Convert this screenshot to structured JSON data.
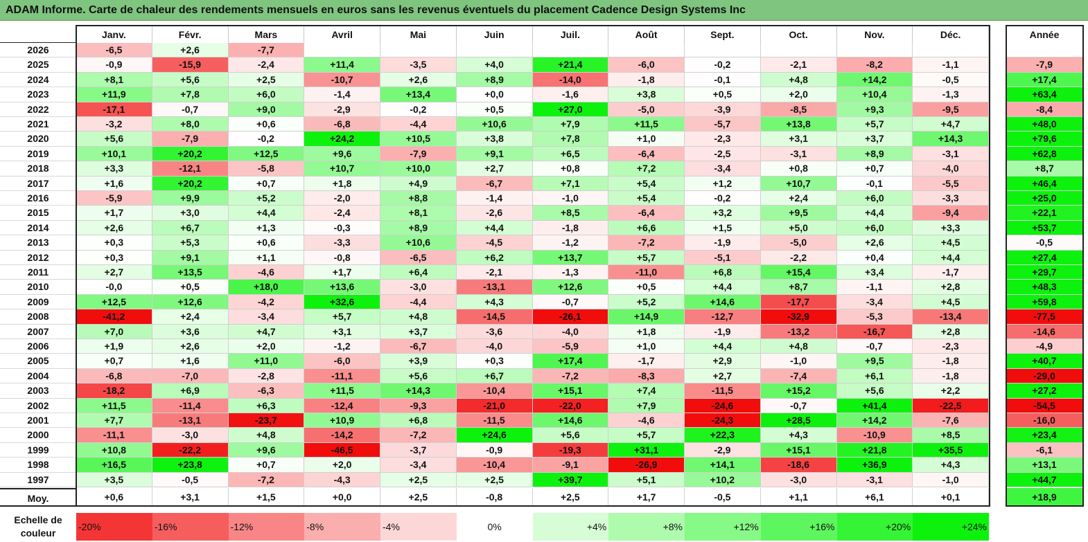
{
  "title": "ADAM Informe. Carte de chaleur des rendements mensuels en euros sans les revenus éventuels du placement Cadence Design Systems Inc",
  "chart_data": {
    "type": "heatmap",
    "columns": [
      "Janv.",
      "Févr.",
      "Mars",
      "Avril",
      "Mai",
      "Juin",
      "Juil.",
      "Août",
      "Sept.",
      "Oct.",
      "Nov.",
      "Déc."
    ],
    "year_column": "Année",
    "avg_label": "Moy.",
    "rows": [
      {
        "year": "2026",
        "values": [
          "-6,5",
          "+2,6",
          "-7,7",
          "",
          "",
          "",
          "",
          "",
          "",
          "",
          "",
          ""
        ],
        "annual": ""
      },
      {
        "year": "2025",
        "values": [
          "-0,9",
          "-15,9",
          "-2,4",
          "+11,4",
          "-3,5",
          "+4,0",
          "+21,4",
          "-6,0",
          "-0,2",
          "-2,1",
          "-8,2",
          "-1,1"
        ],
        "annual": "-7,9"
      },
      {
        "year": "2024",
        "values": [
          "+8,1",
          "+5,6",
          "+2,5",
          "-10,7",
          "+2,6",
          "+8,9",
          "-14,0",
          "-1,8",
          "-0,1",
          "+4,8",
          "+14,2",
          "-0,5"
        ],
        "annual": "+17,4"
      },
      {
        "year": "2023",
        "values": [
          "+11,9",
          "+7,8",
          "+6,0",
          "-1,4",
          "+13,4",
          "+0,0",
          "-1,6",
          "+3,8",
          "+0,5",
          "+2,0",
          "+10,4",
          "-1,3"
        ],
        "annual": "+63,4"
      },
      {
        "year": "2022",
        "values": [
          "-17,1",
          "-0,7",
          "+9,0",
          "-2,9",
          "-0,2",
          "+0,5",
          "+27,0",
          "-5,0",
          "-3,9",
          "-8,5",
          "+9,3",
          "-9,5"
        ],
        "annual": "-8,4"
      },
      {
        "year": "2021",
        "values": [
          "-3,2",
          "+8,0",
          "+0,6",
          "-6,8",
          "-4,4",
          "+10,6",
          "+7,9",
          "+11,5",
          "-5,7",
          "+13,8",
          "+5,7",
          "+4,7"
        ],
        "annual": "+48,0"
      },
      {
        "year": "2020",
        "values": [
          "+5,6",
          "-7,9",
          "-0,2",
          "+24,2",
          "+10,5",
          "+3,8",
          "+7,8",
          "+1,0",
          "-2,3",
          "+3,1",
          "+3,7",
          "+14,3"
        ],
        "annual": "+79,6"
      },
      {
        "year": "2019",
        "values": [
          "+10,1",
          "+20,2",
          "+12,5",
          "+9,6",
          "-7,9",
          "+9,1",
          "+6,5",
          "-6,4",
          "-2,5",
          "-3,1",
          "+8,9",
          "-3,1"
        ],
        "annual": "+62,8"
      },
      {
        "year": "2018",
        "values": [
          "+3,3",
          "-12,1",
          "-5,8",
          "+10,7",
          "+10,0",
          "+2,7",
          "+0,8",
          "+7,2",
          "-3,4",
          "+0,8",
          "+0,7",
          "-4,0"
        ],
        "annual": "+8,7"
      },
      {
        "year": "2017",
        "values": [
          "+1,6",
          "+20,2",
          "+0,7",
          "+1,8",
          "+4,9",
          "-6,7",
          "+7,1",
          "+5,4",
          "+1,2",
          "+10,7",
          "-0,1",
          "-5,5"
        ],
        "annual": "+46,4"
      },
      {
        "year": "2016",
        "values": [
          "-5,9",
          "+9,9",
          "+5,2",
          "-2,0",
          "+8,8",
          "-1,4",
          "-1,0",
          "+5,4",
          "-0,2",
          "+2,4",
          "+6,0",
          "-3,3"
        ],
        "annual": "+25,0"
      },
      {
        "year": "2015",
        "values": [
          "+1,7",
          "+3,0",
          "+4,4",
          "-2,4",
          "+8,1",
          "-2,6",
          "+8,5",
          "-6,4",
          "+3,2",
          "+9,5",
          "+4,4",
          "-9,4"
        ],
        "annual": "+22,1"
      },
      {
        "year": "2014",
        "values": [
          "+2,6",
          "+6,7",
          "+1,3",
          "-0,3",
          "+8,9",
          "+4,4",
          "-1,8",
          "+6,6",
          "+1,5",
          "+5,0",
          "+6,0",
          "+3,3"
        ],
        "annual": "+53,7"
      },
      {
        "year": "2013",
        "values": [
          "+0,3",
          "+5,3",
          "+0,6",
          "-3,3",
          "+10,6",
          "-4,5",
          "-1,2",
          "-7,2",
          "-1,9",
          "-5,0",
          "+2,6",
          "+4,5"
        ],
        "annual": "-0,5"
      },
      {
        "year": "2012",
        "values": [
          "+0,3",
          "+9,1",
          "+1,1",
          "-0,8",
          "-6,5",
          "+6,2",
          "+13,7",
          "+5,7",
          "-5,1",
          "-2,2",
          "+0,4",
          "+4,4"
        ],
        "annual": "+27,4"
      },
      {
        "year": "2011",
        "values": [
          "+2,7",
          "+13,5",
          "-4,6",
          "+1,7",
          "+6,4",
          "-2,1",
          "-1,3",
          "-11,0",
          "+6,8",
          "+15,4",
          "+3,4",
          "-1,7"
        ],
        "annual": "+29,7"
      },
      {
        "year": "2010",
        "values": [
          "-0,0",
          "+0,5",
          "+18,0",
          "+13,6",
          "-3,0",
          "-13,1",
          "+12,6",
          "+0,5",
          "+4,4",
          "+8,7",
          "-1,1",
          "+2,8"
        ],
        "annual": "+48,3"
      },
      {
        "year": "2009",
        "values": [
          "+12,5",
          "+12,6",
          "-4,2",
          "+32,6",
          "-4,4",
          "+4,3",
          "-0,7",
          "+5,2",
          "+14,6",
          "-17,7",
          "-3,4",
          "+4,5"
        ],
        "annual": "+59,8"
      },
      {
        "year": "2008",
        "values": [
          "-41,2",
          "+2,4",
          "-3,4",
          "+5,7",
          "+4,8",
          "-14,5",
          "-26,1",
          "+14,9",
          "-12,7",
          "-32,9",
          "-5,3",
          "-13,4"
        ],
        "annual": "-77,5"
      },
      {
        "year": "2007",
        "values": [
          "+7,0",
          "+3,6",
          "+4,7",
          "+3,1",
          "+3,7",
          "-3,6",
          "-4,0",
          "+1,8",
          "-1,9",
          "-13,2",
          "-16,7",
          "+2,8"
        ],
        "annual": "-14,6"
      },
      {
        "year": "2006",
        "values": [
          "+1,9",
          "+2,6",
          "+2,0",
          "-1,2",
          "-6,7",
          "-4,0",
          "-5,9",
          "+1,0",
          "+4,4",
          "+4,8",
          "-0,7",
          "-2,3"
        ],
        "annual": "-4,9"
      },
      {
        "year": "2005",
        "values": [
          "+0,7",
          "+1,6",
          "+11,0",
          "-6,0",
          "+3,9",
          "+0,3",
          "+17,4",
          "-1,7",
          "+2,9",
          "-1,0",
          "+9,5",
          "-1,8"
        ],
        "annual": "+40,7"
      },
      {
        "year": "2004",
        "values": [
          "-6,8",
          "-7,0",
          "-2,8",
          "-11,1",
          "+5,6",
          "+6,7",
          "-7,2",
          "-8,3",
          "+2,7",
          "-7,4",
          "+6,1",
          "-1,8"
        ],
        "annual": "-29,0"
      },
      {
        "year": "2003",
        "values": [
          "-18,2",
          "+6,9",
          "-6,3",
          "+11,5",
          "+14,3",
          "-10,4",
          "+15,1",
          "+7,4",
          "-11,5",
          "+15,2",
          "+5,6",
          "+2,2"
        ],
        "annual": "+27,2"
      },
      {
        "year": "2002",
        "values": [
          "+11,5",
          "-11,4",
          "+6,3",
          "-12,4",
          "-9,3",
          "-21,0",
          "-22,0",
          "+7,9",
          "-24,6",
          "-0,7",
          "+41,4",
          "-22,5"
        ],
        "annual": "-54,5"
      },
      {
        "year": "2001",
        "values": [
          "+7,7",
          "-13,1",
          "-23,7",
          "+10,9",
          "+6,8",
          "-11,5",
          "+14,6",
          "-4,6",
          "-24,3",
          "+28,5",
          "+14,2",
          "-7,6"
        ],
        "annual": "-16,0"
      },
      {
        "year": "2000",
        "values": [
          "-11,1",
          "-3,0",
          "+4,8",
          "-14,2",
          "-7,2",
          "+24,6",
          "+5,6",
          "+5,7",
          "+22,3",
          "+4,3",
          "-10,9",
          "+8,5"
        ],
        "annual": "+23,4"
      },
      {
        "year": "1999",
        "values": [
          "+10,8",
          "-22,2",
          "+9,6",
          "-46,5",
          "-3,7",
          "-0,9",
          "-19,3",
          "+31,1",
          "-2,9",
          "+15,1",
          "+21,8",
          "+35,5"
        ],
        "annual": "-6,1"
      },
      {
        "year": "1998",
        "values": [
          "+16,5",
          "+23,8",
          "+0,7",
          "+2,0",
          "-3,4",
          "-10,4",
          "-9,1",
          "-26,9",
          "+14,1",
          "-18,6",
          "+36,9",
          "+4,3"
        ],
        "annual": "+13,1"
      },
      {
        "year": "1997",
        "values": [
          "+3,5",
          "-0,5",
          "-7,2",
          "-4,3",
          "+2,5",
          "+2,5",
          "+39,7",
          "+5,1",
          "+10,2",
          "-3,0",
          "-3,1",
          "-1,0"
        ],
        "annual": "+44,7"
      }
    ],
    "average": {
      "values": [
        "+0,6",
        "+3,1",
        "+1,5",
        "+0,0",
        "+2,5",
        "-0,8",
        "+2,5",
        "+1,7",
        "-0,5",
        "+1,1",
        "+6,1",
        "+0,1"
      ],
      "annual": "+18,9"
    },
    "legend": {
      "title": "Echelle de couleur",
      "items": [
        "-20%",
        "-16%",
        "-12%",
        "-8%",
        "-4%",
        "0%",
        "+4%",
        "+8%",
        "+12%",
        "+16%",
        "+20%",
        "+24%"
      ]
    },
    "colors": {
      "negative_max": "#f20d0d",
      "positive_max": "#0df20d",
      "neutral": "#ffffff",
      "title_bg": "#7fc47f"
    }
  }
}
